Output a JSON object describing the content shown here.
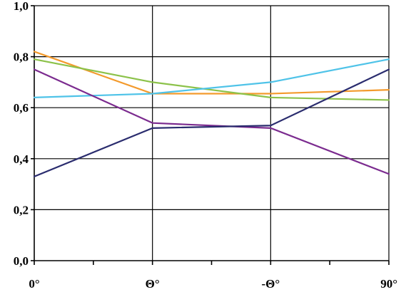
{
  "chart_data": {
    "type": "line",
    "categories": [
      "0°",
      "Θ°",
      "-Θ°",
      "90°"
    ],
    "ylim": [
      0,
      1
    ],
    "yticks": [
      "0,0",
      "0,2",
      "0,4",
      "0,6",
      "0,8",
      "1,0"
    ],
    "ytick_values": [
      0,
      0.2,
      0.4,
      0.6,
      0.8,
      1.0
    ],
    "grid": true,
    "legend": "none",
    "series": [
      {
        "color": "#f39a2c",
        "values": [
          0.82,
          0.655,
          0.655,
          0.67
        ]
      },
      {
        "color": "#8cc24a",
        "values": [
          0.79,
          0.7,
          0.64,
          0.63
        ]
      },
      {
        "color": "#4fc3e8",
        "values": [
          0.64,
          0.655,
          0.7,
          0.79
        ]
      },
      {
        "color": "#7b2b8f",
        "values": [
          0.75,
          0.54,
          0.52,
          0.34
        ]
      },
      {
        "color": "#2a2c6e",
        "values": [
          0.33,
          0.52,
          0.53,
          0.75
        ]
      }
    ]
  }
}
